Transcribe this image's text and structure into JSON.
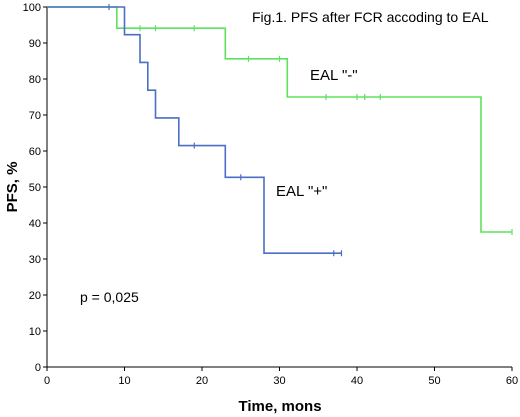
{
  "chart_data": {
    "type": "line",
    "step": true,
    "title": "Fig.1. PFS after FCR accoding to EAL",
    "xlabel": "Time, mons",
    "ylabel": "PFS, %",
    "xlim": [
      0,
      60
    ],
    "ylim": [
      0,
      100
    ],
    "xticks": [
      0,
      10,
      20,
      30,
      40,
      50,
      60
    ],
    "yticks": [
      0,
      10,
      20,
      30,
      40,
      50,
      60,
      70,
      80,
      90,
      100
    ],
    "grid": false,
    "annotation": "p = 0,025",
    "series": [
      {
        "name": "EAL \"-\"",
        "color": "#5fe05f",
        "points": [
          [
            0,
            100
          ],
          [
            9,
            100
          ],
          [
            9,
            94.1
          ],
          [
            23,
            94.1
          ],
          [
            23,
            85.6
          ],
          [
            31,
            85.6
          ],
          [
            31,
            75
          ],
          [
            56,
            75
          ],
          [
            56,
            37.5
          ],
          [
            60,
            37.5
          ]
        ],
        "censored": [
          [
            12,
            94.1
          ],
          [
            14,
            94.1
          ],
          [
            19,
            94.1
          ],
          [
            26,
            85.6
          ],
          [
            30,
            85.6
          ],
          [
            36,
            75
          ],
          [
            40,
            75
          ],
          [
            41,
            75
          ],
          [
            43,
            75
          ],
          [
            60,
            37.5
          ]
        ]
      },
      {
        "name": "EAL \"+\"",
        "color": "#4a6fc4",
        "points": [
          [
            0,
            100
          ],
          [
            10,
            100
          ],
          [
            10,
            92.3
          ],
          [
            12,
            92.3
          ],
          [
            12,
            84.6
          ],
          [
            13,
            84.6
          ],
          [
            13,
            76.9
          ],
          [
            14,
            76.9
          ],
          [
            14,
            69.2
          ],
          [
            17,
            69.2
          ],
          [
            17,
            61.5
          ],
          [
            23,
            61.5
          ],
          [
            23,
            52.7
          ],
          [
            28,
            52.7
          ],
          [
            28,
            31.6
          ],
          [
            38,
            31.6
          ]
        ],
        "censored": [
          [
            8,
            100
          ],
          [
            19,
            61.5
          ],
          [
            25,
            52.7
          ],
          [
            37,
            31.6
          ],
          [
            38,
            31.6
          ]
        ]
      }
    ]
  }
}
